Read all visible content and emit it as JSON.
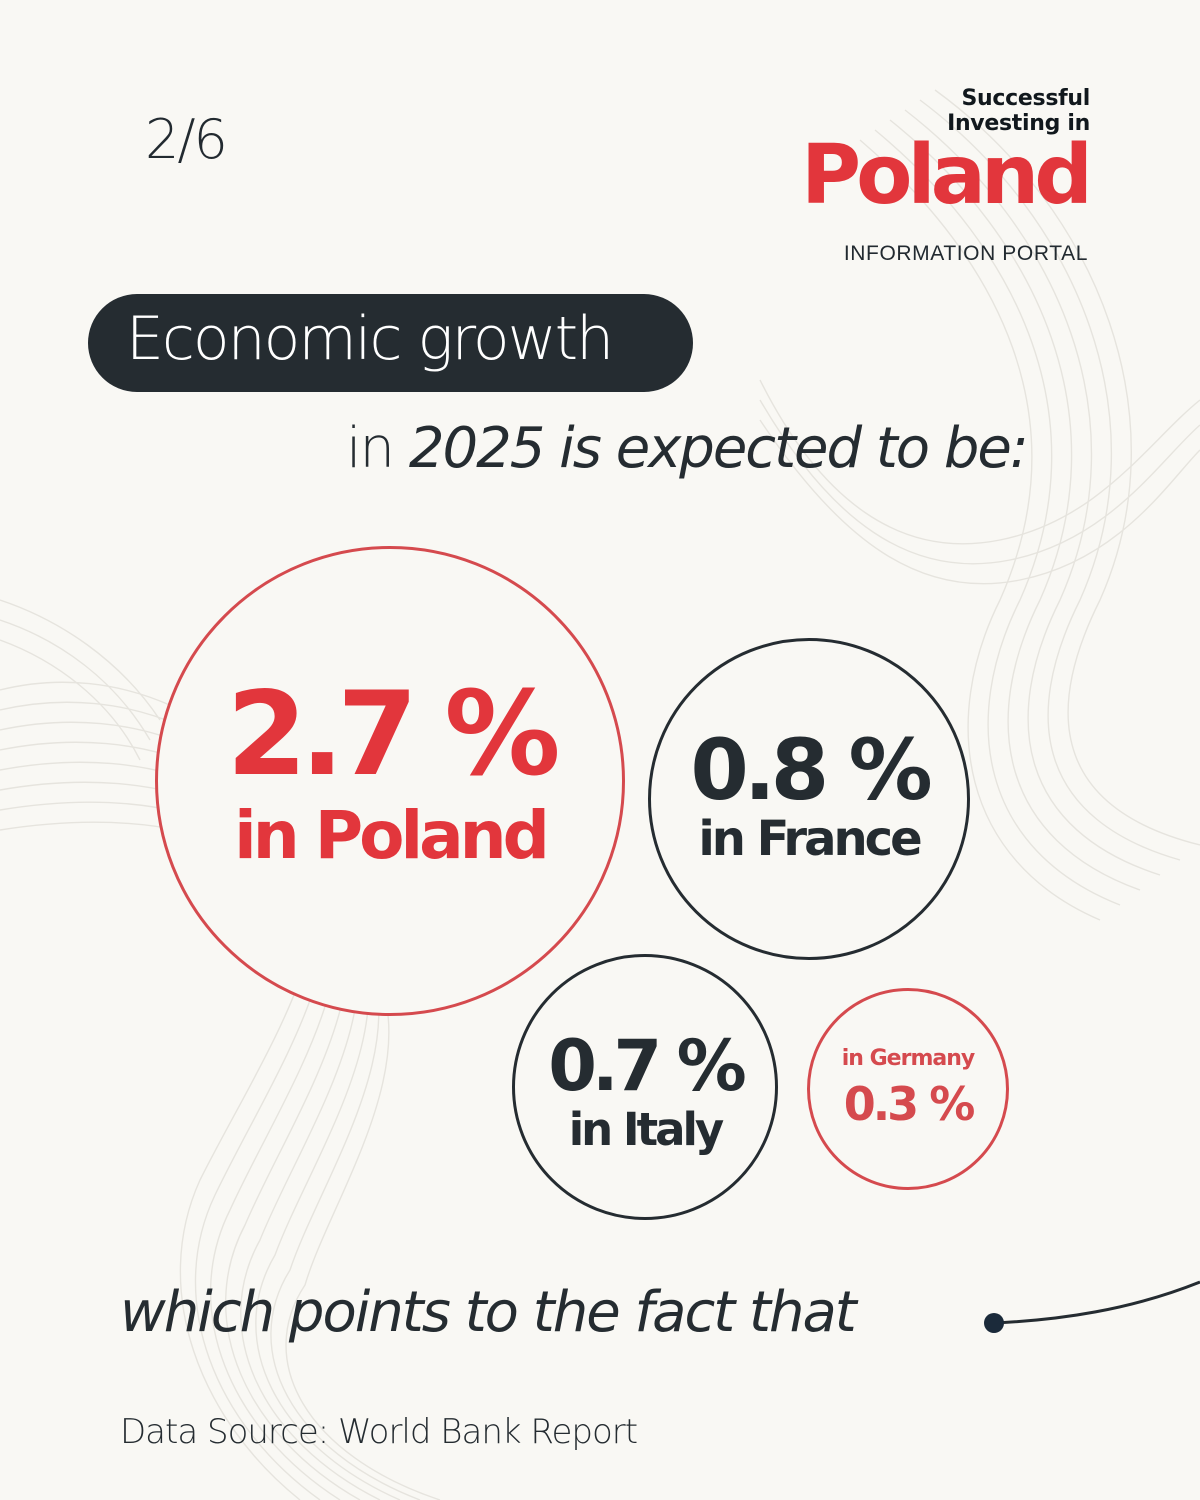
{
  "page_counter": "2/6",
  "logo": {
    "line1": "Successful",
    "line2": "Investing in",
    "brand": "Poland",
    "subtitle": "INFORMATION  PORTAL"
  },
  "headline": "Economic growth",
  "subtitle": {
    "prefix": "in ",
    "emphasis": "2025 is expected to be:"
  },
  "stats": {
    "poland": {
      "value": "2.7 %",
      "label": "in Poland"
    },
    "france": {
      "value": "0.8 %",
      "label": "in France"
    },
    "italy": {
      "value": "0.7 %",
      "label": "in Italy"
    },
    "germany": {
      "value": "0.3 %",
      "label": "in Germany"
    }
  },
  "closing": "which points to the fact that",
  "source": "Data Source: World Bank Report",
  "colors": {
    "background": "#f9f8f4",
    "accent_red": "#e2363c",
    "dark": "#252c31"
  }
}
